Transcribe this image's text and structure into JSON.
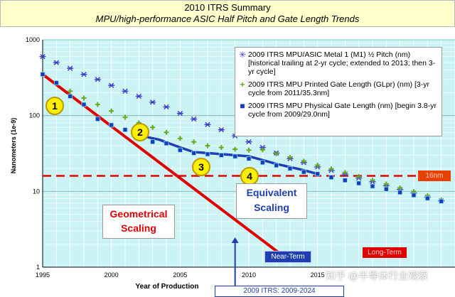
{
  "header": {
    "title": "2010 ITRS Summary",
    "subtitle": "MPU/high-performance ASIC Half Pitch and Gate Length Trends"
  },
  "chart_data": {
    "type": "scatter",
    "xlabel": "Year of Production",
    "ylabel": "Nanometers (1e-9)",
    "xlim": [
      1995,
      2025
    ],
    "ylim": [
      1,
      1000
    ],
    "y_scale": "log",
    "x_ticks": [
      1995,
      2000,
      2005,
      2010,
      2015
    ],
    "y_ticks": [
      1,
      10,
      100,
      1000
    ],
    "legend_position": "top-right",
    "series": [
      {
        "name": "2009 ITRS MPU/ASIC Metal 1 (M1) ½ Pitch (nm) [historical trailing at 2-yr cycle; extended to 2013; then 3-yr cycle]",
        "marker": "asterisk",
        "color": "#3a3acc",
        "x": [
          1995,
          1996,
          1997,
          1998,
          1999,
          2000,
          2001,
          2002,
          2003,
          2004,
          2005,
          2006,
          2007,
          2008,
          2009,
          2010,
          2011,
          2012,
          2013,
          2014,
          2015,
          2016,
          2017,
          2018,
          2019,
          2020,
          2021,
          2022,
          2023,
          2024
        ],
        "y": [
          600,
          500,
          420,
          350,
          300,
          250,
          210,
          180,
          150,
          130,
          107,
          90,
          76,
          65,
          54,
          45,
          38,
          32,
          27,
          24,
          21,
          18.9,
          16.9,
          15,
          13.4,
          11.9,
          10.6,
          9.5,
          8.4,
          7.5
        ]
      },
      {
        "name": "2009 ITRS MPU Printed Gate Length (GLpr) (nm) [3-yr cycle from 2011/35.3nm]",
        "marker": "plus",
        "color": "#66aa22",
        "x": [
          1995,
          1996,
          1997,
          1998,
          1999,
          2000,
          2001,
          2002,
          2003,
          2004,
          2005,
          2006,
          2007,
          2008,
          2009,
          2010,
          2011,
          2012,
          2013,
          2014,
          2015,
          2016,
          2017,
          2018,
          2019,
          2020,
          2021,
          2022,
          2023,
          2024
        ],
        "y": [
          350,
          270,
          210,
          170,
          140,
          115,
          95,
          80,
          70,
          60,
          50,
          45,
          40,
          38,
          36,
          35,
          35.3,
          31.4,
          28,
          25,
          22.2,
          19.8,
          17.7,
          15.7,
          14,
          12.5,
          11.1,
          9.9,
          8.8,
          7.7
        ]
      },
      {
        "name": "2009 ITRS MPU Physical Gate Length (nm) [begin 3.8-yr cycle from 2009/29.0nm]",
        "marker": "square",
        "color": "#1a3ab8",
        "x": [
          1995,
          1996,
          1997,
          1998,
          1999,
          2000,
          2001,
          2002,
          2003,
          2004,
          2005,
          2006,
          2007,
          2008,
          2009,
          2010,
          2011,
          2012,
          2013,
          2014,
          2015,
          2016,
          2017,
          2018,
          2019,
          2020,
          2021,
          2022,
          2023,
          2024
        ],
        "y": [
          350,
          270,
          180,
          140,
          90,
          75,
          65,
          55,
          45,
          43,
          35,
          32,
          31,
          30,
          29,
          27,
          24,
          22,
          20,
          18,
          17,
          15.3,
          14,
          12.8,
          11.7,
          10.7,
          9.7,
          8.9,
          8.1,
          7.4
        ]
      }
    ],
    "lines": [
      {
        "name": "Geometrical Scaling",
        "color": "#e00000",
        "x": [
          1995,
          2013
        ],
        "y": [
          350,
          1.2
        ]
      },
      {
        "name": "Equivalent Scaling",
        "color": "#1f3fb0",
        "x": [
          2002,
          2003.5,
          2005,
          2006,
          2008,
          2010,
          2012,
          2014,
          2015
        ],
        "y": [
          55,
          48,
          38,
          33,
          31,
          29,
          23,
          19,
          17
        ]
      }
    ],
    "reference_line": {
      "label": "16nm",
      "y": 16,
      "color": "#e00000"
    },
    "vertical_marker_year": 2009,
    "annotations": [
      "Geometrical Scaling",
      "Equivalent Scaling",
      "Near-Term",
      "Long-Term",
      "16nm",
      "2009 ITRS: 2009-2024"
    ],
    "badges": [
      "1",
      "2",
      "3",
      "4"
    ]
  },
  "labels": {
    "geo_line1": "Geometrical",
    "geo_line2": "Scaling",
    "eq_line1": "Equivalent",
    "eq_line2": "Scaling",
    "near_term": "Near-Term",
    "long_term": "Long-Term",
    "nm16": "16nm",
    "itrs_range": "2009 ITRS: 2009-2024",
    "watermark": "知乎 @半导体行业观察"
  },
  "colors": {
    "plot_bg": "#ccf3f3",
    "grid": "#ffffff",
    "header_bg": "#ffffcc"
  }
}
